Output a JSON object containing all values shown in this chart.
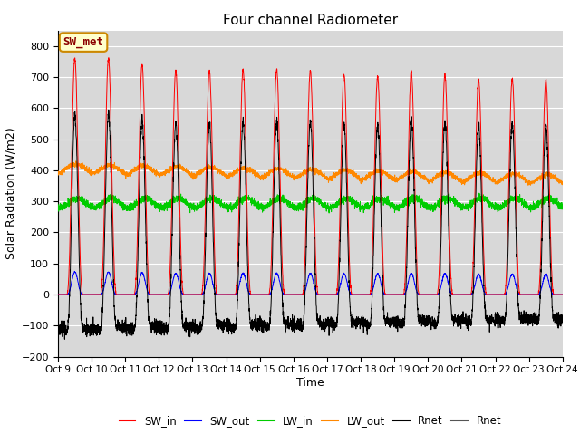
{
  "title": "Four channel Radiometer",
  "xlabel": "Time",
  "ylabel": "Solar Radiation (W/m2)",
  "ylim": [
    -200,
    850
  ],
  "yticks": [
    -200,
    -100,
    0,
    100,
    200,
    300,
    400,
    500,
    600,
    700,
    800
  ],
  "x_tick_labels": [
    "Oct 9",
    "Oct 10",
    "Oct 11",
    "Oct 12",
    "Oct 13",
    "Oct 14",
    "Oct 15",
    "Oct 16",
    "Oct 17",
    "Oct 18",
    "Oct 19",
    "Oct 20",
    "Oct 21",
    "Oct 22",
    "Oct 23",
    "Oct 24"
  ],
  "annotation_text": "SW_met",
  "annotation_facecolor": "#ffffcc",
  "annotation_edgecolor": "#cc8800",
  "colors": {
    "SW_in": "#ff0000",
    "SW_out": "#0000ff",
    "LW_in": "#00cc00",
    "LW_out": "#ff8800",
    "Rnet": "#000000"
  },
  "legend_labels": [
    "SW_in",
    "SW_out",
    "LW_in",
    "LW_out",
    "Rnet",
    "Rnet"
  ],
  "legend_colors": [
    "#ff0000",
    "#0000ff",
    "#00cc00",
    "#ff8800",
    "#000000",
    "#555555"
  ],
  "num_days": 15,
  "title_fontsize": 11,
  "axis_label_fontsize": 9,
  "tick_fontsize": 8,
  "background_color": "#d8d8d8"
}
